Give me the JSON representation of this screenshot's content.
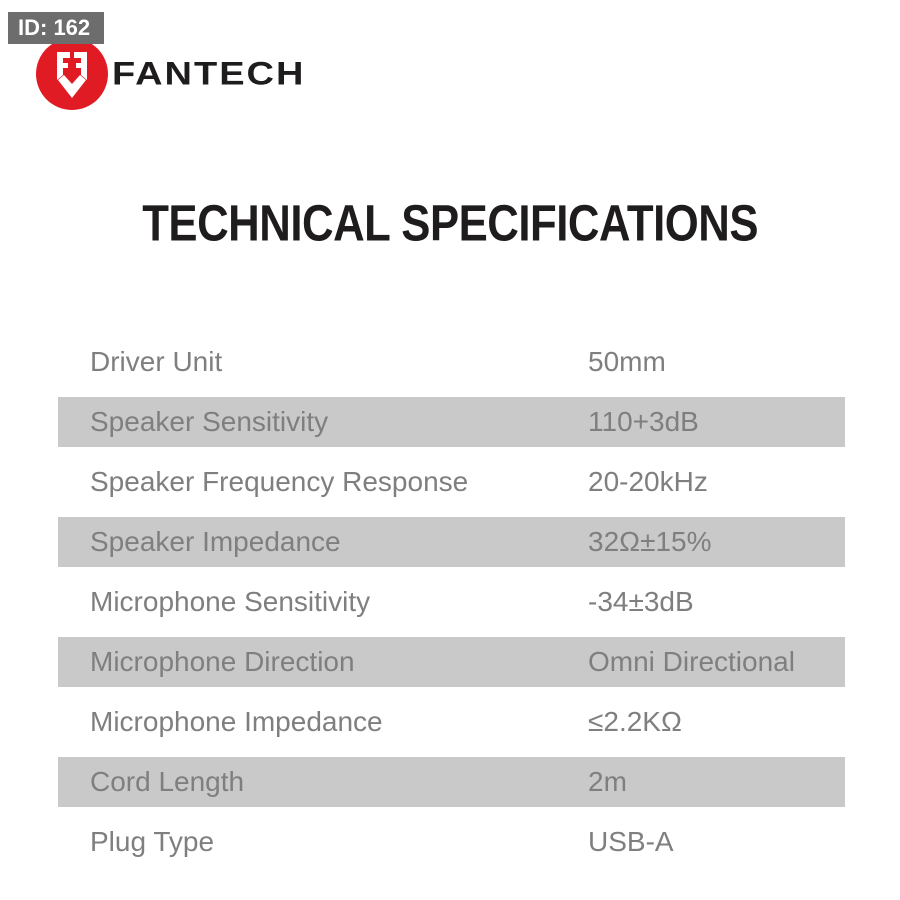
{
  "badge": {
    "label": "ID: 162"
  },
  "brand": {
    "name": "FANTECH",
    "logo_icon": "fantech-emblem-icon"
  },
  "title": "TECHNICAL SPECIFICATIONS",
  "colors": {
    "accent_red": "#e01b24",
    "badge_gray": "#6d6d6d",
    "row_band_gray": "#c9c9c9",
    "table_text_gray": "#7f7f7f",
    "ink_black": "#1f1c1d"
  },
  "spec_table": {
    "rows": [
      {
        "label": "Driver Unit",
        "value": "50mm",
        "highlighted": false
      },
      {
        "label": "Speaker Sensitivity",
        "value": "110+3dB",
        "highlighted": true
      },
      {
        "label": "Speaker Frequency Response",
        "value": "20-20kHz",
        "highlighted": false
      },
      {
        "label": "Speaker Impedance",
        "value": "32Ω±15%",
        "highlighted": true
      },
      {
        "label": "Microphone Sensitivity",
        "value": "-34±3dB",
        "highlighted": false
      },
      {
        "label": "Microphone Direction",
        "value": "Omni Directional",
        "highlighted": true
      },
      {
        "label": "Microphone Impedance",
        "value": "≤2.2KΩ",
        "highlighted": false
      },
      {
        "label": "Cord Length",
        "value": "2m",
        "highlighted": true
      },
      {
        "label": "Plug Type",
        "value": "USB-A",
        "highlighted": false
      }
    ]
  }
}
